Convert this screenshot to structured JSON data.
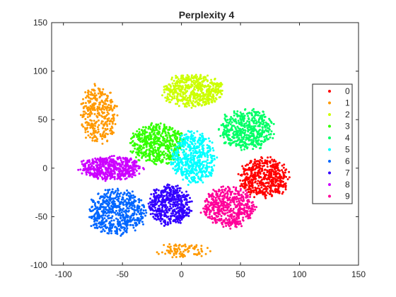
{
  "chart_data": {
    "type": "scatter",
    "title": "Perplexity 4",
    "xlabel": "",
    "ylabel": "",
    "xlim": [
      -110,
      150
    ],
    "ylim": [
      -100,
      150
    ],
    "xticks": [
      -100,
      -50,
      0,
      50,
      100,
      150
    ],
    "yticks": [
      -100,
      -50,
      0,
      50,
      100,
      150
    ],
    "grid": false,
    "box": true,
    "legend_position": "right",
    "series": [
      {
        "name": "0",
        "color": "#ff0000",
        "center": [
          70,
          -10
        ],
        "spread": [
          20,
          20
        ],
        "count": 500,
        "seed": 11
      },
      {
        "name": "1",
        "color": "#ff9900",
        "center": [
          -70,
          55
        ],
        "spread": [
          15,
          30
        ],
        "count": 330,
        "seed": 12
      },
      {
        "name": "1",
        "color": "#ff9900",
        "center": [
          0,
          -85
        ],
        "spread": [
          22,
          7
        ],
        "count": 90,
        "seed": 13
      },
      {
        "name": "2",
        "color": "#ccff00",
        "center": [
          10,
          80
        ],
        "spread": [
          25,
          16
        ],
        "count": 520,
        "seed": 14
      },
      {
        "name": "3",
        "color": "#33ff00",
        "center": [
          -20,
          25
        ],
        "spread": [
          22,
          20
        ],
        "count": 520,
        "seed": 15
      },
      {
        "name": "4",
        "color": "#00ff66",
        "center": [
          55,
          40
        ],
        "spread": [
          22,
          20
        ],
        "count": 480,
        "seed": 16
      },
      {
        "name": "5",
        "color": "#00ffff",
        "center": [
          10,
          10
        ],
        "spread": [
          18,
          26
        ],
        "count": 520,
        "seed": 17
      },
      {
        "name": "6",
        "color": "#0066ff",
        "center": [
          -55,
          -45
        ],
        "spread": [
          24,
          22
        ],
        "count": 560,
        "seed": 18
      },
      {
        "name": "7",
        "color": "#3300ff",
        "center": [
          -10,
          -38
        ],
        "spread": [
          18,
          20
        ],
        "count": 480,
        "seed": 19
      },
      {
        "name": "8",
        "color": "#cc00ff",
        "center": [
          -60,
          0
        ],
        "spread": [
          25,
          12
        ],
        "count": 520,
        "seed": 20
      },
      {
        "name": "9",
        "color": "#ff0099",
        "center": [
          40,
          -40
        ],
        "spread": [
          22,
          20
        ],
        "count": 520,
        "seed": 21
      }
    ],
    "legend": [
      {
        "label": "0",
        "color": "#ff0000"
      },
      {
        "label": "1",
        "color": "#ff9900"
      },
      {
        "label": "2",
        "color": "#ccff00"
      },
      {
        "label": "3",
        "color": "#33ff00"
      },
      {
        "label": "4",
        "color": "#00ff66"
      },
      {
        "label": "5",
        "color": "#00ffff"
      },
      {
        "label": "6",
        "color": "#0066ff"
      },
      {
        "label": "7",
        "color": "#3300ff"
      },
      {
        "label": "8",
        "color": "#cc00ff"
      },
      {
        "label": "9",
        "color": "#ff0099"
      }
    ]
  }
}
